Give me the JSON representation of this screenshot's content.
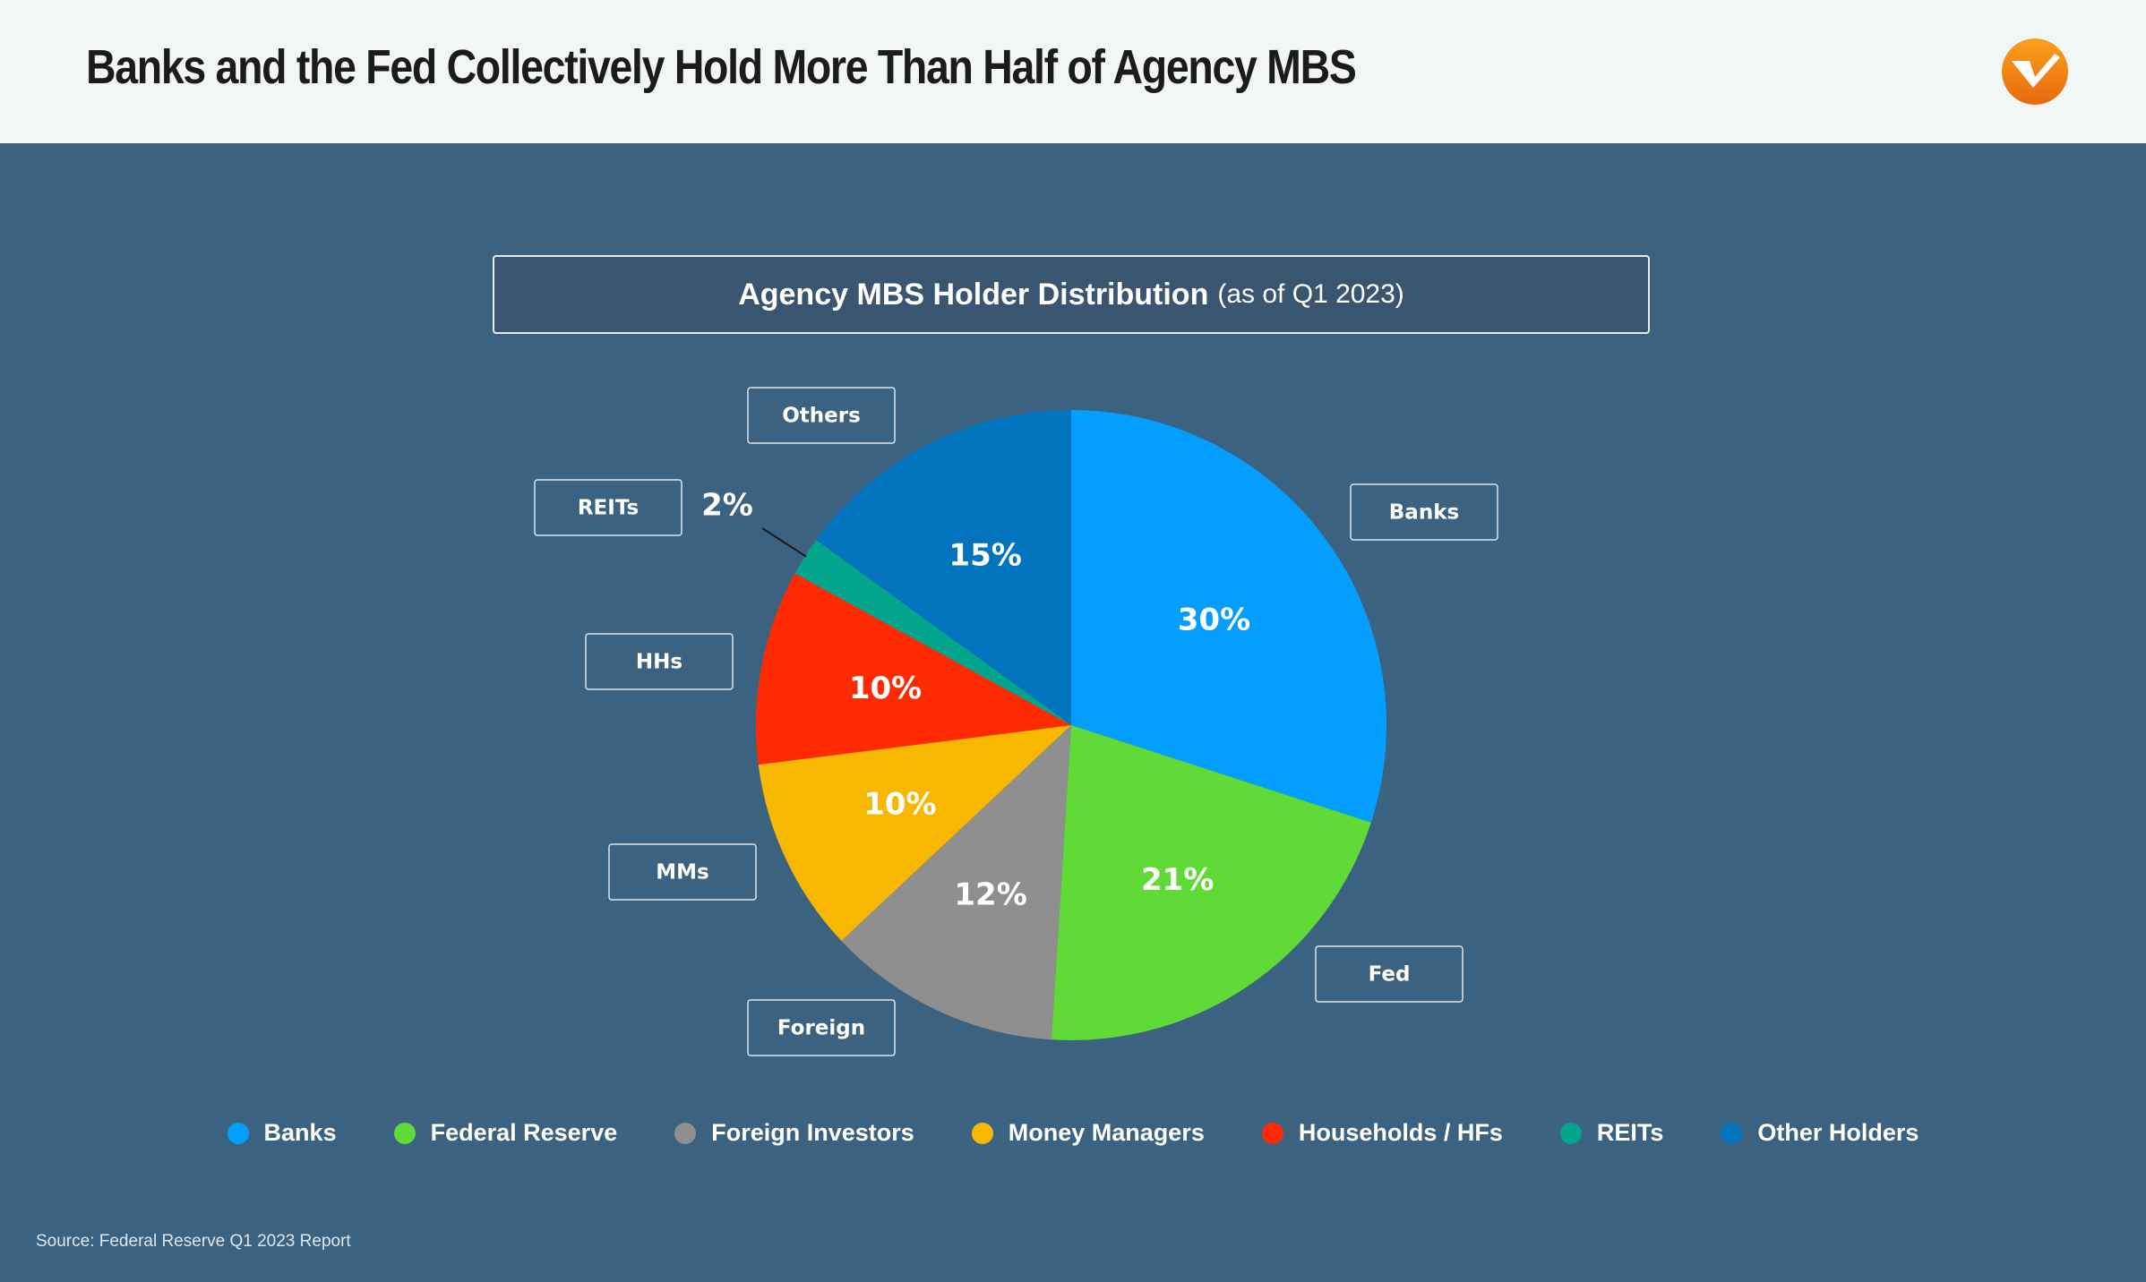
{
  "header": {
    "title": "Banks and the Fed Collectively Hold More Than Half of Agency MBS",
    "logo_icon": "checkmark-logo-icon"
  },
  "chart_data": {
    "type": "pie",
    "title": "Agency MBS Holder Distribution",
    "subtitle": "(as of Q1 2023)",
    "slices": [
      {
        "label": "Banks",
        "legend": "Banks",
        "value": 30,
        "value_label": "30%",
        "color": "#049ffe"
      },
      {
        "label": "Fed",
        "legend": "Federal Reserve",
        "value": 21,
        "value_label": "21%",
        "color": "#5fda36"
      },
      {
        "label": "Foreign",
        "legend": "Foreign Investors",
        "value": 12,
        "value_label": "12%",
        "color": "#8f8f8f"
      },
      {
        "label": "MMs",
        "legend": "Money Managers",
        "value": 10,
        "value_label": "10%",
        "color": "#f8b801"
      },
      {
        "label": "HHs",
        "legend": "Households / HFs",
        "value": 10,
        "value_label": "10%",
        "color": "#fe2b02"
      },
      {
        "label": "REITs",
        "legend": "REITs",
        "value": 2,
        "value_label": "2%",
        "color": "#03a58d"
      },
      {
        "label": "Others",
        "legend": "Other Holders",
        "value": 15,
        "value_label": "15%",
        "color": "#0273bd"
      }
    ],
    "legend_placement": "bottom"
  },
  "footer": {
    "source": "Source: Federal Reserve Q1 2023 Report"
  }
}
